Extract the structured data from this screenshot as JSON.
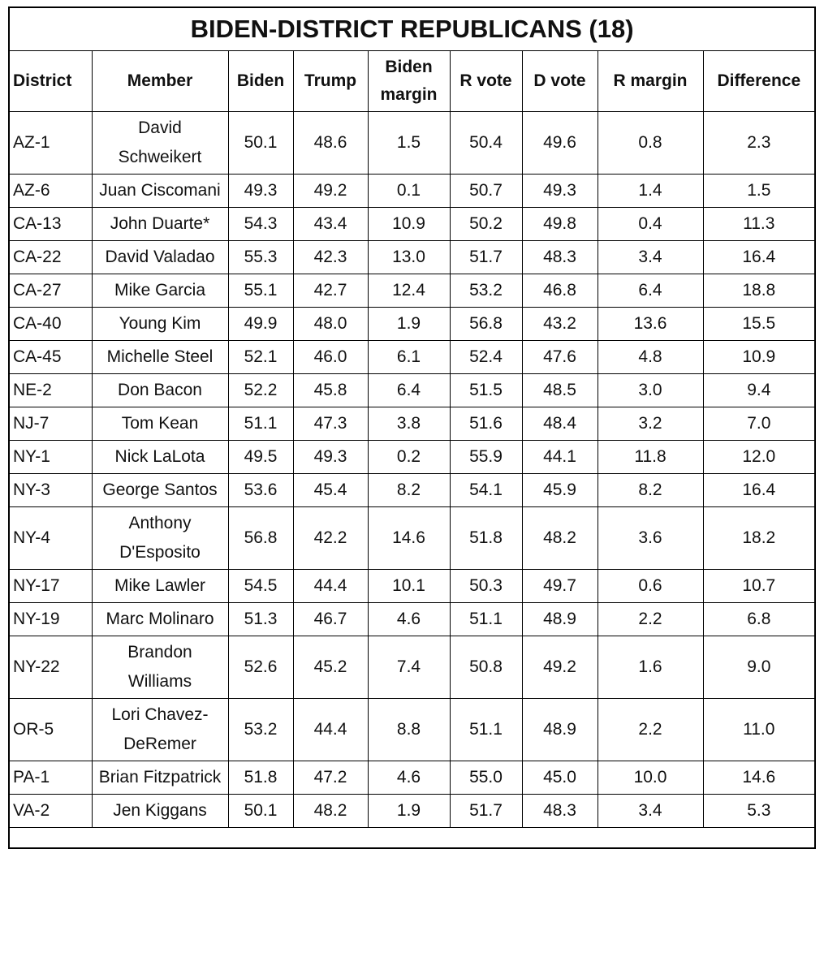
{
  "table": {
    "title": "BIDEN-DISTRICT REPUBLICANS (18)",
    "headers": [
      "District",
      "Member",
      "Biden",
      "Trump",
      "Biden margin",
      "R vote",
      "D vote",
      "R margin",
      "Difference"
    ],
    "rows": [
      [
        "AZ-1",
        "David Schweikert",
        "50.1",
        "48.6",
        "1.5",
        "50.4",
        "49.6",
        "0.8",
        "2.3"
      ],
      [
        "AZ-6",
        "Juan Ciscomani",
        "49.3",
        "49.2",
        "0.1",
        "50.7",
        "49.3",
        "1.4",
        "1.5"
      ],
      [
        "CA-13",
        "John Duarte*",
        "54.3",
        "43.4",
        "10.9",
        "50.2",
        "49.8",
        "0.4",
        "11.3"
      ],
      [
        "CA-22",
        "David Valadao",
        "55.3",
        "42.3",
        "13.0",
        "51.7",
        "48.3",
        "3.4",
        "16.4"
      ],
      [
        "CA-27",
        "Mike Garcia",
        "55.1",
        "42.7",
        "12.4",
        "53.2",
        "46.8",
        "6.4",
        "18.8"
      ],
      [
        "CA-40",
        "Young Kim",
        "49.9",
        "48.0",
        "1.9",
        "56.8",
        "43.2",
        "13.6",
        "15.5"
      ],
      [
        "CA-45",
        "Michelle Steel",
        "52.1",
        "46.0",
        "6.1",
        "52.4",
        "47.6",
        "4.8",
        "10.9"
      ],
      [
        "NE-2",
        "Don Bacon",
        "52.2",
        "45.8",
        "6.4",
        "51.5",
        "48.5",
        "3.0",
        "9.4"
      ],
      [
        "NJ-7",
        "Tom Kean",
        "51.1",
        "47.3",
        "3.8",
        "51.6",
        "48.4",
        "3.2",
        "7.0"
      ],
      [
        "NY-1",
        "Nick LaLota",
        "49.5",
        "49.3",
        "0.2",
        "55.9",
        "44.1",
        "11.8",
        "12.0"
      ],
      [
        "NY-3",
        "George Santos",
        "53.6",
        "45.4",
        "8.2",
        "54.1",
        "45.9",
        "8.2",
        "16.4"
      ],
      [
        "NY-4",
        "Anthony D'Esposito",
        "56.8",
        "42.2",
        "14.6",
        "51.8",
        "48.2",
        "3.6",
        "18.2"
      ],
      [
        "NY-17",
        "Mike Lawler",
        "54.5",
        "44.4",
        "10.1",
        "50.3",
        "49.7",
        "0.6",
        "10.7"
      ],
      [
        "NY-19",
        "Marc Molinaro",
        "51.3",
        "46.7",
        "4.6",
        "51.1",
        "48.9",
        "2.2",
        "6.8"
      ],
      [
        "NY-22",
        "Brandon Williams",
        "52.6",
        "45.2",
        "7.4",
        "50.8",
        "49.2",
        "1.6",
        "9.0"
      ],
      [
        "OR-5",
        "Lori Chavez-DeRemer",
        "53.2",
        "44.4",
        "8.8",
        "51.1",
        "48.9",
        "2.2",
        "11.0"
      ],
      [
        "PA-1",
        "Brian Fitzpatrick",
        "51.8",
        "47.2",
        "4.6",
        "55.0",
        "45.0",
        "10.0",
        "14.6"
      ],
      [
        "VA-2",
        "Jen Kiggans",
        "50.1",
        "48.2",
        "1.9",
        "51.7",
        "48.3",
        "3.4",
        "5.3"
      ]
    ]
  }
}
